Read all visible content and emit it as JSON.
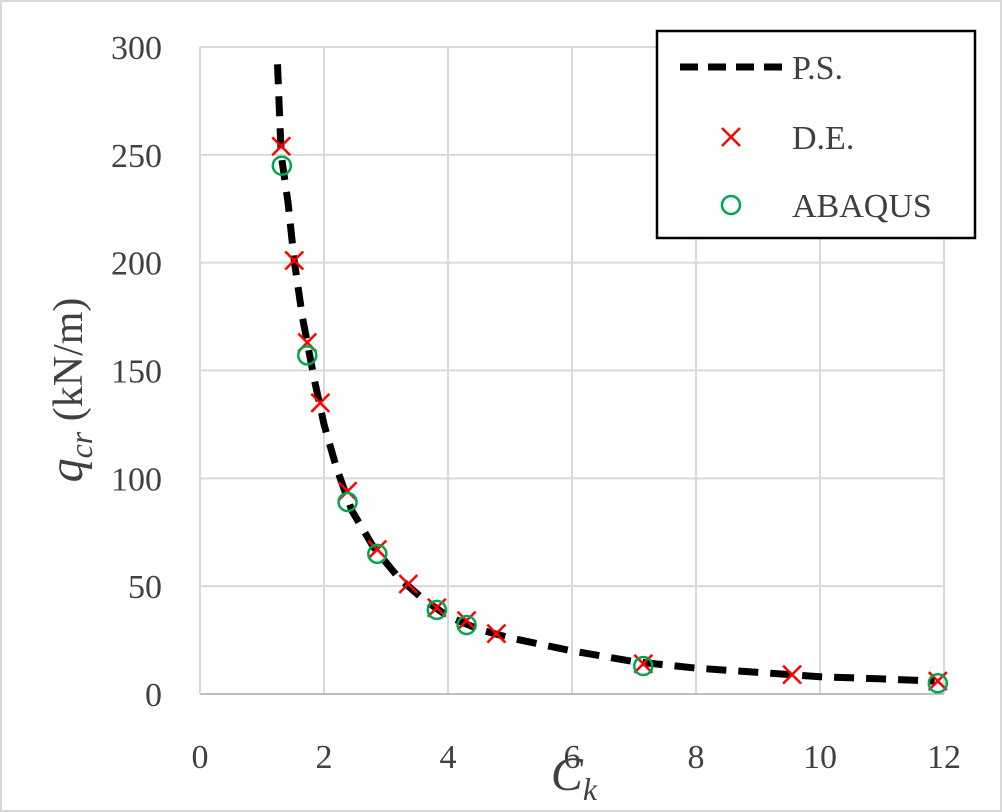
{
  "chart_data": {
    "type": "scatter",
    "x_axis": {
      "label": "C",
      "label_sub": "k",
      "range": [
        0,
        12
      ],
      "ticks": [
        "0",
        "2",
        "4",
        "6",
        "8",
        "10",
        "12"
      ]
    },
    "y_axis": {
      "label": "q",
      "label_sub": "cr",
      "label_unit": " (kN/m)",
      "range": [
        0,
        300
      ],
      "ticks": [
        "0",
        "50",
        "100",
        "150",
        "200",
        "250",
        "300"
      ]
    },
    "grid": true,
    "legend_position": "top-right",
    "series": [
      {
        "name": "P.S.",
        "style": "dashed-line",
        "color": "#000000",
        "points": [
          [
            1.25,
            292
          ],
          [
            1.31,
            250
          ],
          [
            1.42,
            228
          ],
          [
            1.52,
            201
          ],
          [
            1.65,
            175
          ],
          [
            1.85,
            145
          ],
          [
            2.0,
            125
          ],
          [
            2.2,
            105
          ],
          [
            2.45,
            85
          ],
          [
            2.8,
            68
          ],
          [
            3.2,
            54
          ],
          [
            3.6,
            44
          ],
          [
            4.0,
            36
          ],
          [
            4.5,
            30
          ],
          [
            5.0,
            26
          ],
          [
            6.0,
            20
          ],
          [
            7.0,
            15
          ],
          [
            8.0,
            12
          ],
          [
            9.0,
            10
          ],
          [
            10.0,
            8
          ],
          [
            11.0,
            7
          ],
          [
            11.85,
            6
          ]
        ]
      },
      {
        "name": "D.E.",
        "style": "x-marker",
        "color": "#ff0000",
        "points": [
          [
            1.31,
            254
          ],
          [
            1.52,
            201
          ],
          [
            1.73,
            163
          ],
          [
            1.94,
            135
          ],
          [
            2.38,
            94
          ],
          [
            2.86,
            67
          ],
          [
            3.36,
            51
          ],
          [
            3.82,
            40
          ],
          [
            4.3,
            34
          ],
          [
            4.78,
            28
          ],
          [
            7.15,
            14
          ],
          [
            9.55,
            9
          ],
          [
            11.9,
            6
          ]
        ]
      },
      {
        "name": "ABAQUS",
        "style": "o-marker",
        "color": "#00a651",
        "points": [
          [
            1.32,
            245
          ],
          [
            1.73,
            157
          ],
          [
            2.38,
            89
          ],
          [
            2.86,
            65
          ],
          [
            3.82,
            39
          ],
          [
            4.3,
            32
          ],
          [
            7.15,
            13
          ],
          [
            11.9,
            5
          ]
        ]
      }
    ]
  }
}
